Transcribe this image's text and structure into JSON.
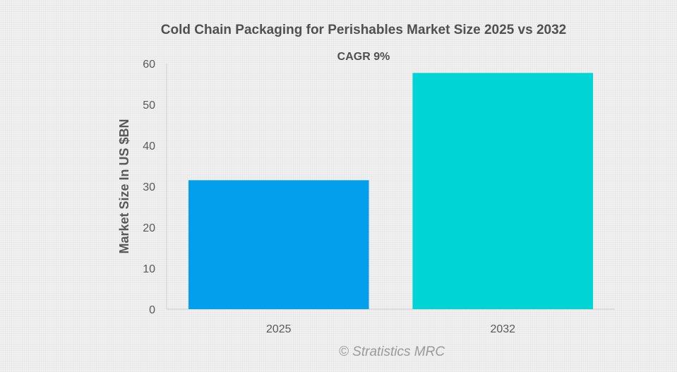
{
  "chart_data": {
    "type": "bar",
    "title": "Cold Chain Packaging for Perishables Market Size 2025 vs 2032",
    "subtitle": "CAGR 9%",
    "xlabel": "",
    "ylabel": "Market Size In US $BN",
    "categories": [
      "2025",
      "2032"
    ],
    "values": [
      31.5,
      57.7
    ],
    "bar_colors": [
      "#039fec",
      "#01d4d4"
    ],
    "ylim": [
      0,
      60
    ],
    "yticks": [
      0,
      10,
      20,
      30,
      40,
      50,
      60
    ],
    "grid": false,
    "legend": "none"
  },
  "watermark": "© Stratistics MRC"
}
